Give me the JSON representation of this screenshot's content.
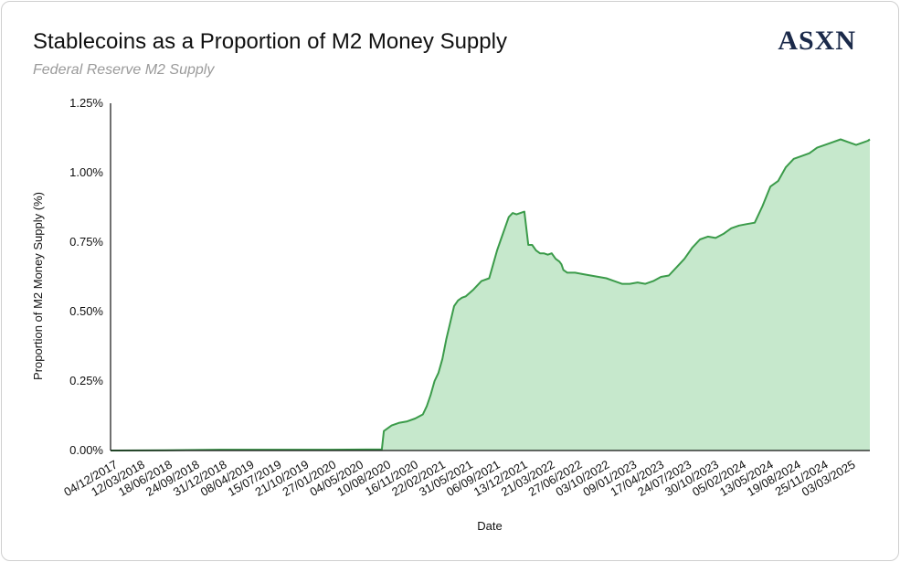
{
  "header": {
    "title": "Stablecoins as a Proportion of M2 Money Supply",
    "subtitle": "Federal Reserve M2 Supply",
    "logo_text": "ASXN"
  },
  "colors": {
    "line": "#3b9b4a",
    "fill": "#c6e8cc",
    "axis": "#111111",
    "logo": "#1b2a4a"
  },
  "chart_data": {
    "type": "area",
    "xlabel": "Date",
    "ylabel": "Proportion of M2 Money Supply (%)",
    "ylim": [
      0,
      1.25
    ],
    "yticks": [
      0,
      0.25,
      0.5,
      0.75,
      1.0,
      1.25
    ],
    "ytick_labels": [
      "0.00%",
      "0.25%",
      "0.50%",
      "0.75%",
      "1.00%",
      "1.25%"
    ],
    "xlim": [
      "2017-12-04",
      "2025-05-19"
    ],
    "xtick_labels": [
      "04/12/2017",
      "12/03/2018",
      "18/06/2018",
      "24/09/2018",
      "31/12/2018",
      "08/04/2019",
      "15/07/2019",
      "21/10/2019",
      "27/01/2020",
      "04/05/2020",
      "10/08/2020",
      "16/11/2020",
      "22/02/2021",
      "31/05/2021",
      "06/09/2021",
      "13/12/2021",
      "21/03/2022",
      "27/06/2022",
      "03/10/2022",
      "09/01/2023",
      "17/04/2023",
      "24/07/2023",
      "30/10/2023",
      "05/02/2024",
      "13/05/2024",
      "19/08/2024",
      "25/11/2024",
      "03/03/2025"
    ],
    "grid": false,
    "legend": "none",
    "x": [
      "2017-12-04",
      "2018-06-18",
      "2018-12-31",
      "2019-07-15",
      "2020-01-27",
      "2020-08-03",
      "2020-08-10",
      "2020-09-07",
      "2020-10-05",
      "2020-11-02",
      "2020-11-30",
      "2020-12-28",
      "2021-01-11",
      "2021-01-25",
      "2021-02-08",
      "2021-02-22",
      "2021-03-08",
      "2021-03-22",
      "2021-04-05",
      "2021-04-19",
      "2021-05-03",
      "2021-05-17",
      "2021-05-31",
      "2021-06-28",
      "2021-07-26",
      "2021-08-23",
      "2021-09-06",
      "2021-09-20",
      "2021-10-04",
      "2021-10-18",
      "2021-11-01",
      "2021-11-15",
      "2021-11-29",
      "2021-12-13",
      "2021-12-27",
      "2022-01-10",
      "2022-01-24",
      "2022-02-07",
      "2022-02-21",
      "2022-03-07",
      "2022-03-21",
      "2022-04-04",
      "2022-04-18",
      "2022-05-02",
      "2022-05-09",
      "2022-05-16",
      "2022-05-30",
      "2022-06-27",
      "2022-07-25",
      "2022-08-22",
      "2022-09-19",
      "2022-10-17",
      "2022-11-14",
      "2022-12-12",
      "2023-01-09",
      "2023-02-06",
      "2023-03-06",
      "2023-04-03",
      "2023-05-01",
      "2023-05-29",
      "2023-06-26",
      "2023-07-24",
      "2023-08-21",
      "2023-09-18",
      "2023-10-16",
      "2023-11-13",
      "2023-12-11",
      "2024-01-08",
      "2024-02-05",
      "2024-03-04",
      "2024-04-01",
      "2024-04-29",
      "2024-05-27",
      "2024-06-24",
      "2024-07-22",
      "2024-08-19",
      "2024-09-16",
      "2024-10-14",
      "2024-11-11",
      "2024-12-09",
      "2025-01-06",
      "2025-02-03",
      "2025-03-03",
      "2025-03-31",
      "2025-04-28",
      "2025-05-12",
      "2025-05-19"
    ],
    "series": [
      {
        "values": [
          0.0,
          0.001,
          0.003,
          0.003,
          0.003,
          0.004,
          0.07,
          0.09,
          0.1,
          0.105,
          0.115,
          0.13,
          0.16,
          0.2,
          0.25,
          0.28,
          0.33,
          0.4,
          0.46,
          0.52,
          0.54,
          0.55,
          0.555,
          0.58,
          0.61,
          0.62,
          0.67,
          0.72,
          0.76,
          0.8,
          0.84,
          0.855,
          0.85,
          0.855,
          0.86,
          0.74,
          0.74,
          0.72,
          0.71,
          0.71,
          0.705,
          0.71,
          0.69,
          0.68,
          0.67,
          0.65,
          0.64,
          0.64,
          0.635,
          0.63,
          0.625,
          0.62,
          0.61,
          0.6,
          0.6,
          0.605,
          0.6,
          0.61,
          0.625,
          0.63,
          0.66,
          0.69,
          0.73,
          0.76,
          0.77,
          0.765,
          0.78,
          0.8,
          0.81,
          0.815,
          0.82,
          0.88,
          0.95,
          0.97,
          1.02,
          1.05,
          1.06,
          1.07,
          1.09,
          1.1,
          1.11,
          1.12,
          1.11,
          1.1,
          1.11,
          1.115,
          1.12
        ]
      }
    ]
  }
}
